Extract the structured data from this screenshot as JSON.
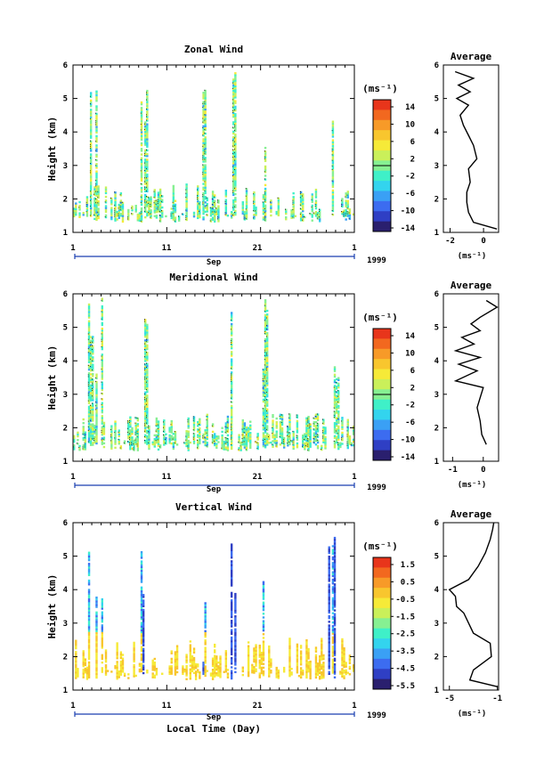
{
  "x_axis": {
    "tick_labels": [
      "1",
      "11",
      "21",
      "1"
    ],
    "month_label": "Sep",
    "year_label": "1999",
    "label": "Local Time (Day)"
  },
  "height_axis": {
    "label": "Height (km)",
    "tick_labels": [
      "1",
      "2",
      "3",
      "4",
      "5",
      "6"
    ]
  },
  "average_title": "Average",
  "units_label": "(ms⁻¹)",
  "colormap": [
    "#2a1f6e",
    "#2f3fc4",
    "#3c6cf0",
    "#3aa0f5",
    "#33d4ee",
    "#3ff0c8",
    "#86f092",
    "#caf05a",
    "#f6ea38",
    "#f8c62e",
    "#f79a28",
    "#f2681f",
    "#e8351b"
  ],
  "chart_data": [
    {
      "type": "heatmap",
      "title": "Zonal Wind",
      "xlabel": "",
      "ylabel": "Height (km)",
      "ylim": [
        1,
        6
      ],
      "colorbar": {
        "ticks": [
          "14",
          "10",
          "6",
          "2",
          "-2",
          "-6",
          "-10",
          "-14"
        ],
        "range": [
          -16,
          16
        ]
      },
      "profile": {
        "title": "Average",
        "xlabel": "(ms⁻¹)",
        "xticks": [
          "-2",
          "0"
        ],
        "xlim": [
          -2.4,
          0.9
        ],
        "points": [
          [
            0.8,
            1.1
          ],
          [
            -0.6,
            1.3
          ],
          [
            -0.9,
            1.6
          ],
          [
            -1.0,
            1.9
          ],
          [
            -1.0,
            2.2
          ],
          [
            -0.8,
            2.5
          ],
          [
            -0.9,
            2.9
          ],
          [
            -0.4,
            3.2
          ],
          [
            -0.6,
            3.6
          ],
          [
            -0.9,
            3.9
          ],
          [
            -1.2,
            4.2
          ],
          [
            -1.4,
            4.5
          ],
          [
            -0.9,
            4.8
          ],
          [
            -1.6,
            5.0
          ],
          [
            -0.8,
            5.2
          ],
          [
            -1.5,
            5.4
          ],
          [
            -0.6,
            5.6
          ],
          [
            -1.7,
            5.8
          ]
        ]
      }
    },
    {
      "type": "heatmap",
      "title": "Meridional Wind",
      "xlabel": "",
      "ylabel": "Height (km)",
      "ylim": [
        1,
        6
      ],
      "colorbar": {
        "ticks": [
          "14",
          "10",
          "6",
          "2",
          "-2",
          "-6",
          "-10",
          "-14"
        ],
        "range": [
          -16,
          16
        ]
      },
      "profile": {
        "title": "Average",
        "xlabel": "(ms⁻¹)",
        "xticks": [
          "-1",
          "0"
        ],
        "xlim": [
          -1.3,
          0.5
        ],
        "points": [
          [
            0.1,
            1.5
          ],
          [
            -0.05,
            1.8
          ],
          [
            -0.1,
            2.2
          ],
          [
            -0.2,
            2.6
          ],
          [
            -0.1,
            2.9
          ],
          [
            0.0,
            3.2
          ],
          [
            -0.9,
            3.4
          ],
          [
            -0.2,
            3.7
          ],
          [
            -0.8,
            3.9
          ],
          [
            -0.1,
            4.1
          ],
          [
            -0.9,
            4.3
          ],
          [
            -0.3,
            4.5
          ],
          [
            -0.7,
            4.7
          ],
          [
            -0.1,
            4.9
          ],
          [
            -0.4,
            5.1
          ],
          [
            -0.1,
            5.3
          ],
          [
            0.45,
            5.6
          ],
          [
            0.1,
            5.8
          ]
        ]
      }
    },
    {
      "type": "heatmap",
      "title": "Vertical Wind",
      "xlabel": "Local Time (Day)",
      "ylabel": "Height (km)",
      "ylim": [
        1,
        6
      ],
      "colorbar": {
        "ticks": [
          "1.5",
          "0.5",
          "-0.5",
          "-1.5",
          "-2.5",
          "-3.5",
          "-4.5",
          "-5.5"
        ],
        "range": [
          -6,
          2
        ]
      },
      "profile": {
        "title": "Average",
        "xlabel": "(ms⁻¹)",
        "xticks": [
          "-5",
          "-1"
        ],
        "xlim": [
          -5.5,
          -0.9
        ],
        "points": [
          [
            -1.0,
            1.1
          ],
          [
            -3.3,
            1.3
          ],
          [
            -3.0,
            1.6
          ],
          [
            -1.5,
            2.0
          ],
          [
            -1.6,
            2.4
          ],
          [
            -3.0,
            2.7
          ],
          [
            -3.4,
            3.0
          ],
          [
            -3.8,
            3.3
          ],
          [
            -4.4,
            3.5
          ],
          [
            -4.5,
            3.8
          ],
          [
            -5.0,
            4.0
          ],
          [
            -3.4,
            4.3
          ],
          [
            -2.6,
            4.7
          ],
          [
            -2.0,
            5.1
          ],
          [
            -1.6,
            5.5
          ],
          [
            -1.4,
            5.8
          ],
          [
            -1.3,
            6.0
          ]
        ]
      }
    }
  ]
}
